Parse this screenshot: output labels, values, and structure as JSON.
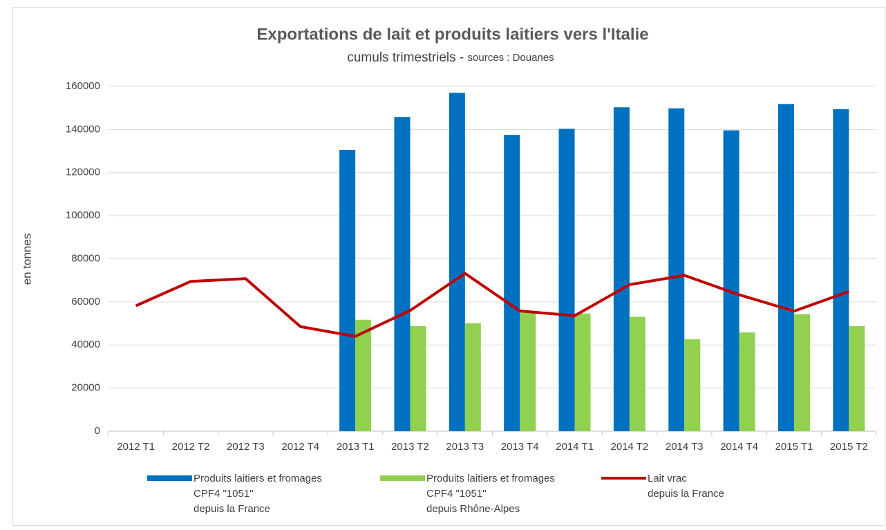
{
  "chart_data": {
    "type": "bar_line",
    "title": "Exportations de lait et produits laitiers vers l'Italie",
    "subtitle": "cumuls trimestriels - ",
    "source": "sources : Douanes",
    "y_label": "en tonnes",
    "categories": [
      "2012 T1",
      "2012 T2",
      "2012 T3",
      "2012 T4",
      "2013 T1",
      "2013 T2",
      "2013 T3",
      "2013 T4",
      "2014 T1",
      "2014 T2",
      "2014 T3",
      "2014 T4",
      "2015 T1",
      "2015 T2"
    ],
    "series": [
      {
        "name": "Produits laitiers et fromages\nCPF4 \"1051\"\ndepuis la France",
        "color": "#0070c0",
        "kind": "bar",
        "values": [
          null,
          null,
          null,
          null,
          130500,
          145800,
          157000,
          137500,
          140300,
          150300,
          149800,
          139600,
          151800,
          149400
        ]
      },
      {
        "name": "Produits laitiers et fromages\nCPF4 \"1051\"\ndepuis Rhône-Alpes",
        "color": "#92d050",
        "kind": "bar",
        "values": [
          null,
          null,
          null,
          null,
          51700,
          48800,
          50100,
          55200,
          54600,
          53100,
          42700,
          45800,
          54300,
          48800
        ]
      },
      {
        "name": "Lait vrac\ndepuis la France",
        "color": "#c00000",
        "kind": "line",
        "values": [
          58200,
          69500,
          70800,
          48500,
          44000,
          56000,
          73200,
          55800,
          53600,
          68000,
          72300,
          63300,
          55700,
          64800
        ]
      }
    ],
    "ylim": [
      0,
      160000
    ],
    "yticks": [
      0,
      20000,
      40000,
      60000,
      80000,
      100000,
      120000,
      140000,
      160000
    ],
    "grid": true
  }
}
